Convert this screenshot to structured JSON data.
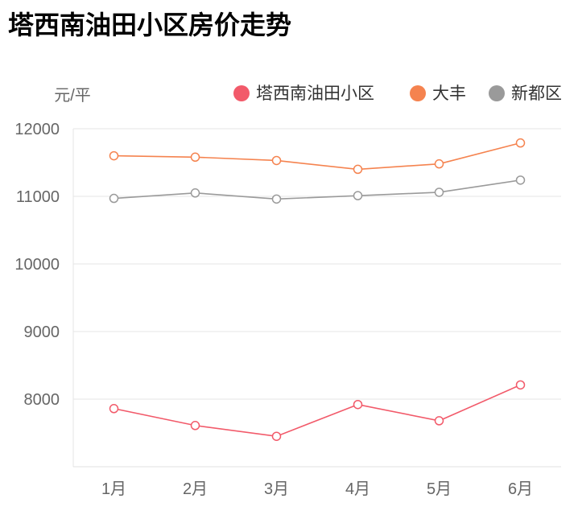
{
  "chart_data": {
    "type": "line",
    "title": "塔西南油田小区房价走势",
    "ylabel": "元/平",
    "xlabel": "",
    "categories": [
      "1月",
      "2月",
      "3月",
      "4月",
      "5月",
      "6月"
    ],
    "ylim": [
      7000,
      12000
    ],
    "yticks": [
      8000,
      9000,
      10000,
      11000,
      12000
    ],
    "grid": true,
    "legend_position": "top-right",
    "series": [
      {
        "name": "塔西南油田小区",
        "color": "#f25a6a",
        "values": [
          7860,
          7610,
          7450,
          7920,
          7680,
          8210
        ]
      },
      {
        "name": "大丰",
        "color": "#f5834f",
        "values": [
          11600,
          11580,
          11530,
          11400,
          11480,
          11790
        ]
      },
      {
        "name": "新都区",
        "color": "#9a9a9a",
        "values": [
          10970,
          11050,
          10960,
          11010,
          11060,
          11240
        ]
      }
    ]
  }
}
